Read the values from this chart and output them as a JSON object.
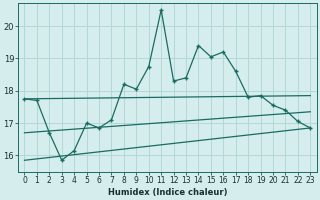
{
  "xlabel": "Humidex (Indice chaleur)",
  "bg_color": "#d5eeed",
  "grid_color": "#b2d8d5",
  "line_color": "#1a6b60",
  "xlim": [
    -0.5,
    23.5
  ],
  "ylim": [
    15.5,
    20.7
  ],
  "yticks": [
    16,
    17,
    18,
    19,
    20
  ],
  "xticks": [
    0,
    1,
    2,
    3,
    4,
    5,
    6,
    7,
    8,
    9,
    10,
    11,
    12,
    13,
    14,
    15,
    16,
    17,
    18,
    19,
    20,
    21,
    22,
    23
  ],
  "main_x": [
    0,
    1,
    2,
    3,
    4,
    5,
    6,
    7,
    8,
    9,
    10,
    11,
    12,
    13,
    14,
    15,
    16,
    17,
    18,
    19,
    20,
    21,
    22,
    23
  ],
  "main_y": [
    17.75,
    17.7,
    16.7,
    15.85,
    16.15,
    17.0,
    16.85,
    17.1,
    18.2,
    18.05,
    18.75,
    20.5,
    18.3,
    18.4,
    19.4,
    19.05,
    19.2,
    18.6,
    17.8,
    17.85,
    17.55,
    17.4,
    17.05,
    16.85
  ],
  "upper_line_x": [
    0,
    23
  ],
  "upper_line_y": [
    17.75,
    17.85
  ],
  "lower_line_x": [
    0,
    23
  ],
  "lower_line_y": [
    15.85,
    16.85
  ],
  "mid_line_x": [
    0,
    23
  ],
  "mid_line_y": [
    16.7,
    17.35
  ],
  "xlabel_fontsize": 6.0,
  "tick_fontsize": 5.5,
  "ytick_fontsize": 6.0
}
